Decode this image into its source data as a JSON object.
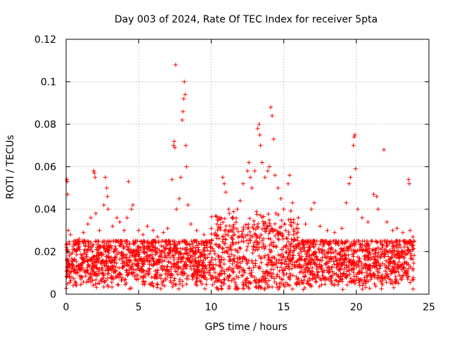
{
  "chart_data": {
    "type": "scatter",
    "title": "Day 003 of 2024, Rate Of TEC Index for receiver 5pta",
    "xlabel": "GPS time / hours",
    "ylabel": "ROTI / TECUs",
    "xlim": [
      0,
      25
    ],
    "ylim": [
      0,
      0.12
    ],
    "x_ticks": [
      0,
      5,
      10,
      15,
      20,
      25
    ],
    "x_tick_labels": [
      "0",
      "5",
      "10",
      "15",
      "20",
      "25"
    ],
    "y_ticks": [
      0,
      0.02,
      0.04,
      0.06,
      0.08,
      0.1,
      0.12
    ],
    "y_tick_labels": [
      "0",
      "0.02",
      "0.04",
      "0.06",
      "0.08",
      "0.1",
      "0.12"
    ],
    "grid": true,
    "marker": "+",
    "colors": {
      "points": "#ff0000",
      "grid": "#a0a0a0",
      "frame": "#000000"
    },
    "series": [
      {
        "name": "ROTI",
        "points": [
          [
            0.05,
            0.054
          ],
          [
            0.08,
            0.053
          ],
          [
            0.1,
            0.047
          ],
          [
            0.15,
            0.03
          ],
          [
            0.3,
            0.028
          ],
          [
            0.6,
            0.024
          ],
          [
            0.9,
            0.026
          ],
          [
            1.2,
            0.029
          ],
          [
            1.5,
            0.033
          ],
          [
            1.7,
            0.036
          ],
          [
            1.9,
            0.058
          ],
          [
            1.95,
            0.057
          ],
          [
            2.0,
            0.055
          ],
          [
            2.05,
            0.038
          ],
          [
            2.3,
            0.03
          ],
          [
            2.6,
            0.042
          ],
          [
            2.7,
            0.055
          ],
          [
            2.8,
            0.05
          ],
          [
            2.85,
            0.046
          ],
          [
            2.9,
            0.04
          ],
          [
            3.2,
            0.032
          ],
          [
            3.5,
            0.036
          ],
          [
            3.7,
            0.034
          ],
          [
            4.0,
            0.03
          ],
          [
            4.2,
            0.036
          ],
          [
            4.3,
            0.053
          ],
          [
            4.5,
            0.04
          ],
          [
            4.6,
            0.042
          ],
          [
            5.0,
            0.03
          ],
          [
            5.3,
            0.028
          ],
          [
            5.6,
            0.032
          ],
          [
            6.0,
            0.03
          ],
          [
            6.3,
            0.027
          ],
          [
            6.7,
            0.029
          ],
          [
            7.0,
            0.031
          ],
          [
            7.3,
            0.054
          ],
          [
            7.4,
            0.07
          ],
          [
            7.45,
            0.072
          ],
          [
            7.5,
            0.069
          ],
          [
            7.55,
            0.108
          ],
          [
            7.6,
            0.04
          ],
          [
            7.8,
            0.045
          ],
          [
            7.9,
            0.055
          ],
          [
            8.0,
            0.082
          ],
          [
            8.05,
            0.086
          ],
          [
            8.1,
            0.092
          ],
          [
            8.15,
            0.1
          ],
          [
            8.2,
            0.094
          ],
          [
            8.25,
            0.07
          ],
          [
            8.3,
            0.06
          ],
          [
            8.4,
            0.042
          ],
          [
            8.6,
            0.033
          ],
          [
            9.0,
            0.03
          ],
          [
            9.5,
            0.028
          ],
          [
            10.0,
            0.031
          ],
          [
            10.4,
            0.033
          ],
          [
            10.8,
            0.055
          ],
          [
            10.9,
            0.052
          ],
          [
            11.0,
            0.048
          ],
          [
            11.2,
            0.04
          ],
          [
            11.5,
            0.036
          ],
          [
            11.8,
            0.04
          ],
          [
            12.0,
            0.044
          ],
          [
            12.2,
            0.052
          ],
          [
            12.5,
            0.058
          ],
          [
            12.6,
            0.062
          ],
          [
            12.7,
            0.055
          ],
          [
            12.8,
            0.05
          ],
          [
            13.0,
            0.058
          ],
          [
            13.2,
            0.078
          ],
          [
            13.3,
            0.08
          ],
          [
            13.35,
            0.075
          ],
          [
            13.4,
            0.07
          ],
          [
            13.5,
            0.062
          ],
          [
            13.7,
            0.055
          ],
          [
            13.9,
            0.058
          ],
          [
            14.0,
            0.06
          ],
          [
            14.1,
            0.088
          ],
          [
            14.2,
            0.084
          ],
          [
            14.3,
            0.073
          ],
          [
            14.4,
            0.056
          ],
          [
            14.6,
            0.05
          ],
          [
            14.8,
            0.045
          ],
          [
            15.0,
            0.04
          ],
          [
            15.3,
            0.052
          ],
          [
            15.4,
            0.056
          ],
          [
            15.6,
            0.043
          ],
          [
            16.0,
            0.036
          ],
          [
            16.5,
            0.033
          ],
          [
            16.9,
            0.04
          ],
          [
            17.1,
            0.043
          ],
          [
            17.5,
            0.032
          ],
          [
            18.0,
            0.03
          ],
          [
            18.5,
            0.029
          ],
          [
            19.0,
            0.031
          ],
          [
            19.3,
            0.043
          ],
          [
            19.5,
            0.052
          ],
          [
            19.6,
            0.055
          ],
          [
            19.8,
            0.07
          ],
          [
            19.85,
            0.074
          ],
          [
            19.9,
            0.075
          ],
          [
            19.95,
            0.059
          ],
          [
            20.1,
            0.04
          ],
          [
            20.4,
            0.036
          ],
          [
            20.8,
            0.034
          ],
          [
            21.2,
            0.047
          ],
          [
            21.4,
            0.046
          ],
          [
            21.5,
            0.04
          ],
          [
            21.9,
            0.068
          ],
          [
            22.1,
            0.034
          ],
          [
            22.5,
            0.03
          ],
          [
            22.8,
            0.031
          ],
          [
            23.2,
            0.029
          ],
          [
            23.6,
            0.054
          ],
          [
            23.65,
            0.052
          ],
          [
            23.7,
            0.03
          ],
          [
            23.9,
            0.027
          ]
        ],
        "dense_band": {
          "description": "thousands of ROTI points between 0.002 and ~0.03 TECU/s across the whole day",
          "x_range": [
            0,
            24
          ],
          "y_min": 0.002,
          "y_typical_max": 0.025,
          "y_elevated_max_10_to_16h": 0.04
        }
      }
    ]
  }
}
